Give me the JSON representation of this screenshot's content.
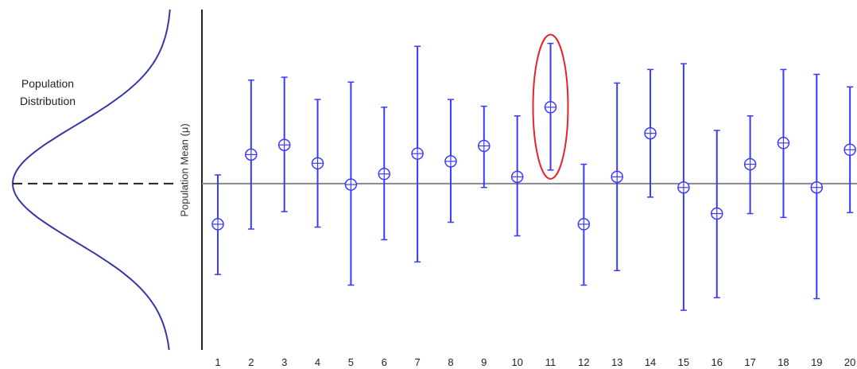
{
  "chart_data": {
    "type": "errorbar",
    "ylabel": "Population Mean (μ)",
    "distribution_label": [
      "Population",
      "Distribution"
    ],
    "population_mean": 0,
    "categories": [
      "1",
      "2",
      "3",
      "4",
      "5",
      "6",
      "7",
      "8",
      "9",
      "10",
      "11",
      "12",
      "13",
      "14",
      "15",
      "16",
      "17",
      "18",
      "19",
      "20"
    ],
    "means": [
      -0.42,
      0.3,
      0.4,
      0.21,
      -0.01,
      0.1,
      0.31,
      0.23,
      0.39,
      0.07,
      0.79,
      -0.42,
      0.07,
      0.52,
      -0.04,
      -0.31,
      0.2,
      0.42,
      -0.04,
      0.35
    ],
    "lower": [
      -0.94,
      -0.47,
      -0.29,
      -0.45,
      -1.05,
      -0.58,
      -0.81,
      -0.4,
      -0.04,
      -0.54,
      0.14,
      -1.05,
      -0.9,
      -0.14,
      -1.31,
      -1.18,
      -0.31,
      -0.35,
      -1.19,
      -0.3
    ],
    "upper": [
      0.09,
      1.07,
      1.1,
      0.87,
      1.05,
      0.79,
      1.42,
      0.87,
      0.8,
      0.7,
      1.45,
      0.2,
      1.04,
      1.18,
      1.24,
      0.55,
      0.7,
      1.18,
      1.13,
      1.0
    ],
    "ylim": [
      -1.72,
      1.8
    ],
    "highlighted_index": 10,
    "colors": {
      "interval": "#3a3aff",
      "highlight": "#e8232b",
      "axis": "#222222",
      "mean_line": "#888888",
      "curve": "#3737a8"
    }
  }
}
